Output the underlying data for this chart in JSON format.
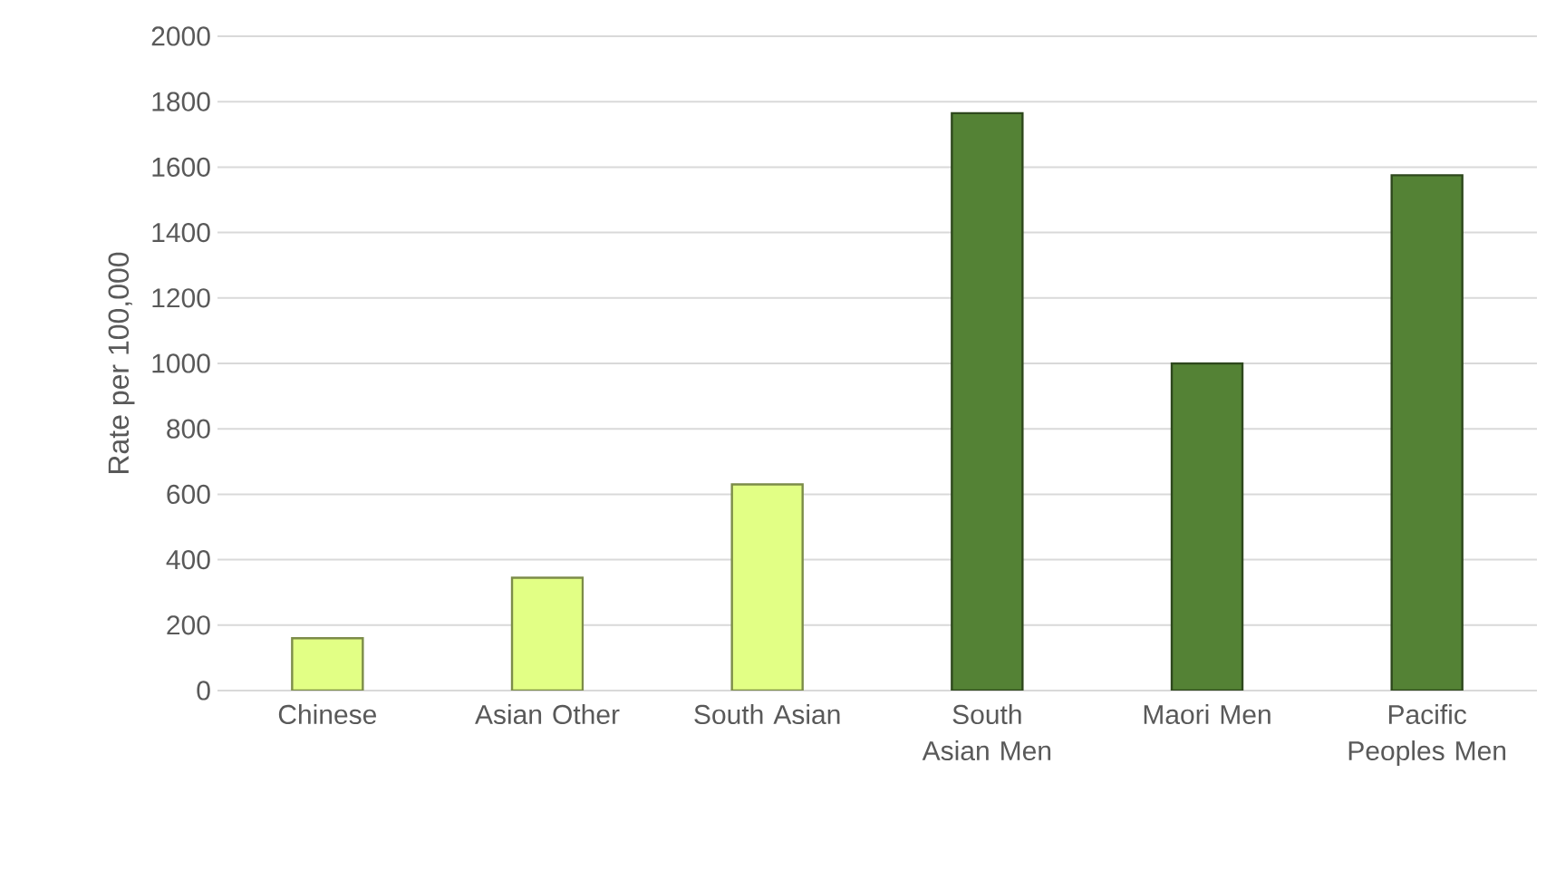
{
  "chart_data": {
    "type": "bar",
    "ylabel": "Rate per 100,000",
    "categories": [
      "Chinese",
      "Asian Other",
      "South Asian",
      "South Asian Men",
      "Maori Men",
      "Pacific Peoples Men"
    ],
    "values": [
      160,
      345,
      630,
      1765,
      1000,
      1575
    ],
    "colors": [
      "#e2ff85",
      "#e2ff85",
      "#e2ff85",
      "#548235",
      "#548235",
      "#548235"
    ],
    "ylim": [
      0,
      2000
    ],
    "yticks": [
      0,
      200,
      400,
      600,
      800,
      1000,
      1200,
      1400,
      1600,
      1800,
      2000
    ],
    "grid": "y"
  }
}
